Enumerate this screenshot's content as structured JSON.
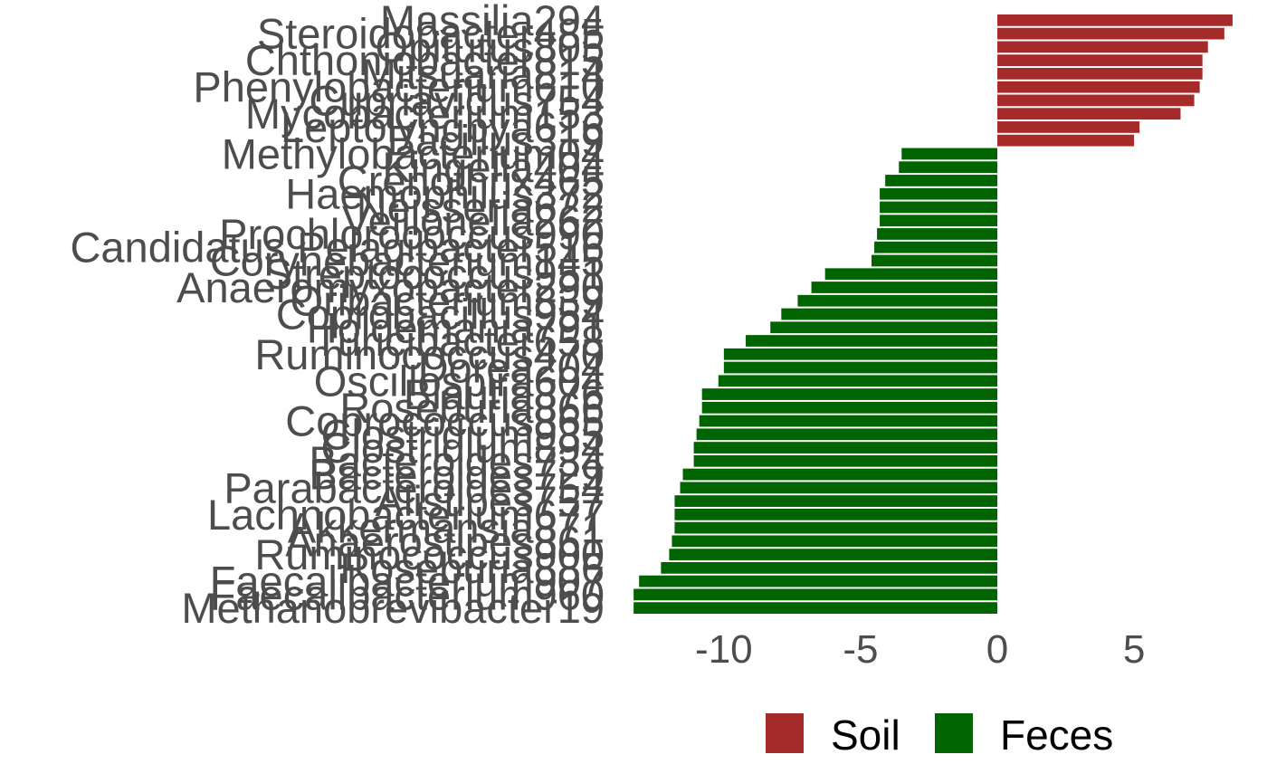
{
  "chart_data": {
    "type": "bar",
    "orientation": "horizontal",
    "categories": [
      "Massilia294",
      "Steroidobacter485",
      "Opitutus805",
      "Chthoniobacter815",
      "Mitsuaria814",
      "Phenylobacterium610",
      "Cupriavidus754",
      "Mycobacterium153",
      "Leptolyngbya616",
      "Bacillus319",
      "Methylobacterium04",
      "Kingella404",
      "Crenothrix465",
      "Haemophilus372",
      "Neisseria622",
      "Veillonella262",
      "Prochlorococcus990",
      "Candidatus Pelagibacter516",
      "Corynebacterium145",
      "Streptococcus951",
      "Anaeromyxobacter290",
      "Oribacterium839",
      "Coprobacillus954",
      "Holdemania791",
      "Turicibacter658",
      "Ruminococcus470",
      "Dorea204",
      "Oscillospira604",
      "Blautia876",
      "Roseburia866",
      "Coprococcus865",
      "Clostridium935",
      "Clostridium894",
      "Bacteroides734",
      "Bacteroides729",
      "Parabacteroides754",
      "Alistipes757",
      "Lachnobacterium677",
      "Akkermansia871",
      "Anaerostipes861",
      "Ruminococcus900",
      "Roseburia886",
      "Faecalibacterium907",
      "Faecalibacterium960",
      "Methanobrevibacter19"
    ],
    "values": [
      8.6,
      8.3,
      7.7,
      7.5,
      7.5,
      7.4,
      7.2,
      6.7,
      5.2,
      5.0,
      -3.5,
      -3.6,
      -4.1,
      -4.3,
      -4.3,
      -4.3,
      -4.4,
      -4.5,
      -4.6,
      -6.3,
      -6.8,
      -7.3,
      -7.9,
      -8.3,
      -9.2,
      -10.0,
      -10.0,
      -10.2,
      -10.8,
      -10.8,
      -10.9,
      -11.0,
      -11.1,
      -11.1,
      -11.5,
      -11.6,
      -11.8,
      -11.8,
      -11.8,
      -11.9,
      -12.0,
      -12.3,
      -13.1,
      -13.3,
      -13.3
    ],
    "group_rule": "positive values are Soil, negative values are Feces",
    "groups": [
      {
        "name": "Soil",
        "color": "#a52a2a"
      },
      {
        "name": "Feces",
        "color": "#006400"
      }
    ],
    "x_ticks": [
      -10,
      -5,
      0,
      5
    ],
    "xlim": [
      -13.9,
      9.0
    ],
    "title": "",
    "xlabel": "",
    "ylabel": "",
    "grid": false,
    "legend_position": "bottom"
  }
}
